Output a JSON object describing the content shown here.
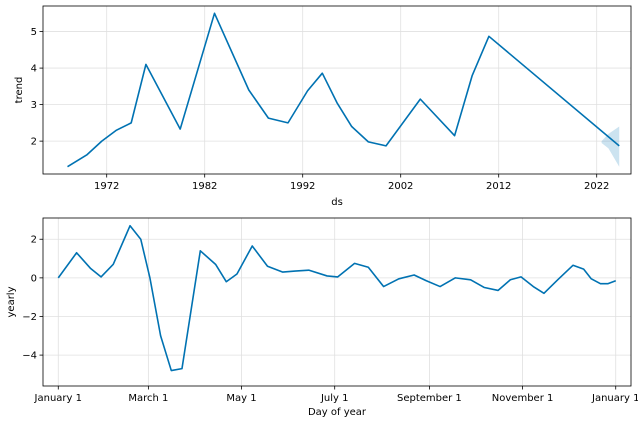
{
  "chart_data": [
    {
      "type": "line",
      "xlabel": "ds",
      "ylabel": "trend",
      "color": "#0072B2",
      "uncertainty_color": "#0072B2",
      "grid": true,
      "xlim": [
        1965.5,
        2025.5
      ],
      "ylim": [
        1.1,
        5.7
      ],
      "x_ticks": [
        1972,
        1982,
        1992,
        2002,
        2012,
        2022
      ],
      "x_tick_labels": [
        "1972",
        "1982",
        "1992",
        "2002",
        "2012",
        "2022"
      ],
      "y_ticks": [
        2,
        3,
        4,
        5
      ],
      "y_tick_labels": [
        "2",
        "3",
        "4",
        "5"
      ],
      "series": [
        {
          "x": [
            1968,
            1970,
            1971.5,
            1973,
            1974.5,
            1976,
            1979.5,
            1983,
            1986.5,
            1988.5,
            1990.5,
            1992.5,
            1994,
            1995.5,
            1997,
            1998.7,
            2000.5,
            2004,
            2007.5,
            2009.3,
            2011,
            2024.3
          ],
          "y": [
            1.3,
            1.63,
            2.0,
            2.3,
            2.5,
            4.1,
            2.33,
            5.5,
            3.4,
            2.63,
            2.5,
            3.38,
            3.86,
            3.05,
            2.4,
            1.98,
            1.87,
            3.15,
            2.15,
            3.8,
            4.87,
            1.87
          ]
        }
      ],
      "uncertainty_band": {
        "x": [
          2022.5,
          2023.2,
          2024.3
        ],
        "upper": [
          2.0,
          2.2,
          2.4
        ],
        "lower": [
          1.95,
          1.8,
          1.3
        ]
      }
    },
    {
      "type": "line",
      "xlabel": "Day of year",
      "ylabel": "yearly",
      "color": "#0072B2",
      "grid": true,
      "xlim": [
        -10,
        375
      ],
      "ylim": [
        -5.6,
        3.1
      ],
      "x_ticks": [
        0,
        59,
        120,
        181,
        243,
        304,
        365
      ],
      "x_tick_labels": [
        "January 1",
        "March 1",
        "May 1",
        "July 1",
        "September 1",
        "November 1",
        "January 1"
      ],
      "y_ticks": [
        -4,
        -2,
        0,
        2
      ],
      "y_tick_labels": [
        "−4",
        "−2",
        "0",
        "2"
      ],
      "series": [
        {
          "x": [
            0,
            12,
            21,
            28,
            36,
            47,
            54,
            60,
            67,
            74,
            81,
            93,
            103,
            110,
            117,
            127,
            137,
            147,
            155,
            164,
            176,
            183,
            194,
            203,
            213,
            223,
            233,
            241,
            250,
            260,
            270,
            279,
            288,
            296,
            303,
            311,
            318,
            327,
            337,
            344,
            349,
            355,
            360,
            365
          ],
          "y": [
            0.0,
            1.3,
            0.5,
            0.05,
            0.7,
            2.7,
            2.0,
            0.0,
            -3.0,
            -4.8,
            -4.7,
            1.4,
            0.7,
            -0.2,
            0.2,
            1.65,
            0.6,
            0.3,
            0.35,
            0.4,
            0.1,
            0.05,
            0.75,
            0.55,
            -0.45,
            -0.05,
            0.15,
            -0.15,
            -0.45,
            0.0,
            -0.1,
            -0.5,
            -0.65,
            -0.1,
            0.05,
            -0.45,
            -0.8,
            -0.1,
            0.65,
            0.45,
            -0.05,
            -0.3,
            -0.3,
            -0.15
          ]
        }
      ]
    }
  ]
}
